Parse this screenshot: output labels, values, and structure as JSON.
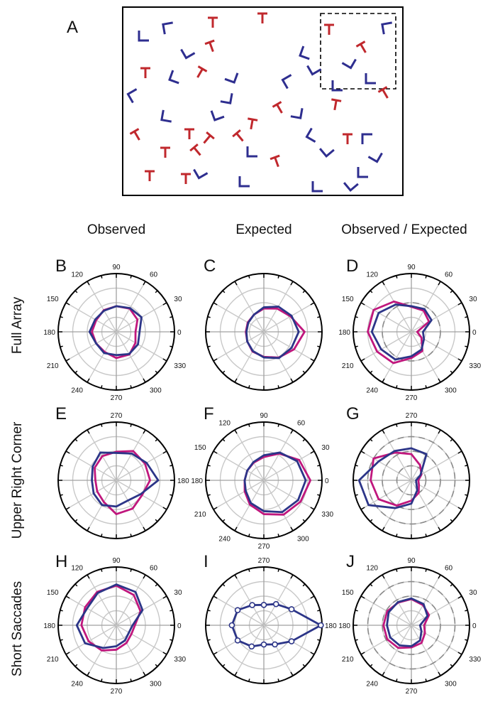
{
  "colors": {
    "red_glyph": "#c0282d",
    "blue_glyph": "#2e2e8f",
    "magenta_series": "#c0177d",
    "blue_series": "#2c3588",
    "grid": "#c8c8c8",
    "dashed_reference": "#8a8a8a"
  },
  "panel_a": {
    "letter": "A",
    "red_glyph_shape": "T",
    "blue_glyph_shape": "L",
    "inset": "dashed-box-upper-right"
  },
  "column_labels": [
    "Observed",
    "Expected",
    "Observed / Expected"
  ],
  "row_labels": [
    "Full Array",
    "Upper Right Corner",
    "Short Saccades"
  ],
  "chart_data": [
    {
      "type": "polar-line",
      "panel": "B",
      "row": "Full Array",
      "column": "Observed",
      "rmax": 1.0,
      "angle_labels": [
        "90",
        "60",
        "30",
        "0",
        "330",
        "300",
        "270",
        "240",
        "210",
        "180",
        "150",
        "120"
      ],
      "series": [
        {
          "color": "#c0177d",
          "theta": [
            0,
            30,
            60,
            90,
            120,
            150,
            180,
            210,
            240,
            270,
            300,
            330
          ],
          "r": [
            0.33,
            0.42,
            0.46,
            0.44,
            0.43,
            0.4,
            0.42,
            0.4,
            0.4,
            0.45,
            0.45,
            0.38
          ]
        },
        {
          "color": "#2c3588",
          "theta": [
            0,
            30,
            60,
            90,
            120,
            150,
            180,
            210,
            240,
            270,
            300,
            330
          ],
          "r": [
            0.4,
            0.5,
            0.47,
            0.44,
            0.42,
            0.42,
            0.46,
            0.4,
            0.42,
            0.4,
            0.44,
            0.43
          ]
        }
      ]
    },
    {
      "type": "polar-line",
      "panel": "C",
      "row": "Full Array",
      "column": "Expected",
      "rmax": 1.0,
      "angle_labels": [],
      "series": [
        {
          "color": "#c0177d",
          "theta": [
            0,
            30,
            60,
            90,
            120,
            150,
            180,
            210,
            240,
            270,
            300,
            330
          ],
          "r": [
            0.7,
            0.53,
            0.46,
            0.4,
            0.34,
            0.32,
            0.31,
            0.33,
            0.39,
            0.43,
            0.51,
            0.6
          ]
        },
        {
          "color": "#2c3588",
          "theta": [
            0,
            30,
            60,
            90,
            120,
            150,
            180,
            210,
            240,
            270,
            300,
            330
          ],
          "r": [
            0.6,
            0.55,
            0.5,
            0.42,
            0.34,
            0.31,
            0.3,
            0.33,
            0.38,
            0.44,
            0.52,
            0.55
          ]
        }
      ]
    },
    {
      "type": "polar-line",
      "panel": "D",
      "row": "Full Array",
      "column": "Observed / Expected",
      "rmax": 1.0,
      "angle_labels": [
        "90",
        "60",
        "30",
        "0",
        "330",
        "300",
        "270",
        "240",
        "210",
        "180",
        "150",
        "120"
      ],
      "reference_circle_r": 0.5,
      "series": [
        {
          "color": "#c0177d",
          "theta": [
            0,
            30,
            60,
            90,
            120,
            150,
            180,
            210,
            240,
            270,
            300,
            330
          ],
          "r": [
            0.1,
            0.35,
            0.42,
            0.43,
            0.6,
            0.75,
            0.75,
            0.68,
            0.62,
            0.45,
            0.38,
            0.2
          ]
        },
        {
          "color": "#2c3588",
          "theta": [
            0,
            30,
            60,
            90,
            120,
            150,
            180,
            210,
            240,
            270,
            300,
            330
          ],
          "r": [
            0.2,
            0.4,
            0.45,
            0.44,
            0.54,
            0.65,
            0.68,
            0.6,
            0.55,
            0.42,
            0.35,
            0.25
          ]
        }
      ]
    },
    {
      "type": "polar-line",
      "panel": "E",
      "row": "Upper Right Corner",
      "column": "Observed",
      "rmax": 1.0,
      "angle_labels": [
        "270",
        "180"
      ],
      "series": [
        {
          "color": "#c0177d",
          "theta": [
            0,
            30,
            60,
            90,
            120,
            150,
            180,
            210,
            240,
            270,
            300,
            330
          ],
          "r": [
            0.58,
            0.57,
            0.58,
            0.49,
            0.48,
            0.43,
            0.36,
            0.38,
            0.43,
            0.58,
            0.56,
            0.51
          ]
        },
        {
          "color": "#2c3588",
          "theta": [
            0,
            30,
            60,
            90,
            120,
            150,
            180,
            210,
            240,
            270,
            300,
            330
          ],
          "r": [
            0.72,
            0.6,
            0.53,
            0.47,
            0.55,
            0.47,
            0.42,
            0.45,
            0.49,
            0.45,
            0.4,
            0.48
          ]
        }
      ]
    },
    {
      "type": "polar-line",
      "panel": "F",
      "row": "Upper Right Corner",
      "column": "Expected",
      "rmax": 1.0,
      "angle_labels": [
        "90",
        "60",
        "30",
        "0",
        "330",
        "300",
        "270",
        "240",
        "210",
        "180",
        "150",
        "120"
      ],
      "series": [
        {
          "color": "#c0177d",
          "theta": [
            0,
            30,
            60,
            90,
            120,
            150,
            180,
            210,
            240,
            270,
            300,
            330
          ],
          "r": [
            0.8,
            0.7,
            0.53,
            0.4,
            0.35,
            0.33,
            0.33,
            0.38,
            0.48,
            0.58,
            0.68,
            0.73
          ]
        },
        {
          "color": "#2c3588",
          "theta": [
            0,
            30,
            60,
            90,
            120,
            150,
            180,
            210,
            240,
            270,
            300,
            330
          ],
          "r": [
            0.72,
            0.66,
            0.55,
            0.43,
            0.36,
            0.33,
            0.33,
            0.36,
            0.45,
            0.53,
            0.63,
            0.68
          ]
        }
      ]
    },
    {
      "type": "polar-line",
      "panel": "G",
      "row": "Upper Right Corner",
      "column": "Observed / Expected",
      "rmax": 1.0,
      "angle_labels": [
        "270"
      ],
      "reference_circles_r": [
        0.25,
        0.5,
        0.75
      ],
      "series": [
        {
          "color": "#c0177d",
          "theta": [
            0,
            30,
            60,
            90,
            120,
            150,
            180,
            210,
            240,
            270,
            300,
            330
          ],
          "r": [
            0.12,
            0.2,
            0.3,
            0.45,
            0.55,
            0.75,
            0.7,
            0.65,
            0.5,
            0.35,
            0.25,
            0.15
          ]
        },
        {
          "color": "#2c3588",
          "theta": [
            0,
            30,
            60,
            90,
            120,
            150,
            180,
            210,
            240,
            270,
            300,
            330
          ],
          "r": [
            0.08,
            0.18,
            0.52,
            0.55,
            0.58,
            0.65,
            0.9,
            0.85,
            0.55,
            0.4,
            0.2,
            0.1
          ]
        }
      ]
    },
    {
      "type": "polar-line",
      "panel": "H",
      "row": "Short Saccades",
      "column": "Observed",
      "rmax": 1.0,
      "angle_labels": [
        "90",
        "60",
        "30",
        "0",
        "330",
        "300",
        "270",
        "240",
        "210",
        "180",
        "150",
        "120"
      ],
      "series": [
        {
          "color": "#c0177d",
          "theta": [
            0,
            30,
            60,
            90,
            120,
            150,
            180,
            210,
            240,
            270,
            300,
            330
          ],
          "r": [
            0.32,
            0.48,
            0.6,
            0.68,
            0.66,
            0.62,
            0.6,
            0.55,
            0.5,
            0.42,
            0.35,
            0.3
          ]
        },
        {
          "color": "#2c3588",
          "theta": [
            0,
            30,
            60,
            90,
            120,
            150,
            180,
            210,
            240,
            270,
            300,
            330
          ],
          "r": [
            0.28,
            0.52,
            0.66,
            0.7,
            0.64,
            0.58,
            0.68,
            0.62,
            0.45,
            0.36,
            0.3,
            0.25
          ]
        }
      ]
    },
    {
      "type": "polar-line",
      "panel": "I",
      "row": "Short Saccades",
      "column": "Expected",
      "rmax": 1.0,
      "angle_labels": [
        "270",
        "180"
      ],
      "markers": "circle",
      "series": [
        {
          "color": "#2c3588",
          "theta": [
            0,
            30,
            60,
            90,
            120,
            150,
            180,
            210,
            240,
            270,
            300,
            330
          ],
          "r": [
            0.98,
            0.55,
            0.42,
            0.35,
            0.4,
            0.52,
            0.55,
            0.52,
            0.42,
            0.33,
            0.38,
            0.55
          ]
        }
      ]
    },
    {
      "type": "polar-line",
      "panel": "J",
      "row": "Short Saccades",
      "column": "Observed / Expected",
      "rmax": 1.0,
      "angle_labels": [
        "90",
        "60",
        "30",
        "0",
        "330",
        "300",
        "270",
        "240",
        "210",
        "180",
        "150",
        "120"
      ],
      "reference_circles_r": [
        0.5,
        0.75
      ],
      "series": [
        {
          "color": "#c0177d",
          "theta": [
            0,
            30,
            60,
            90,
            120,
            150,
            180,
            210,
            240,
            270,
            300,
            330
          ],
          "r": [
            0.22,
            0.35,
            0.4,
            0.45,
            0.45,
            0.48,
            0.48,
            0.48,
            0.45,
            0.38,
            0.35,
            0.27
          ]
        },
        {
          "color": "#2c3588",
          "theta": [
            0,
            30,
            60,
            90,
            120,
            150,
            180,
            210,
            240,
            270,
            300,
            330
          ],
          "r": [
            0.15,
            0.32,
            0.42,
            0.46,
            0.46,
            0.45,
            0.42,
            0.42,
            0.4,
            0.36,
            0.3,
            0.2
          ]
        }
      ]
    }
  ]
}
